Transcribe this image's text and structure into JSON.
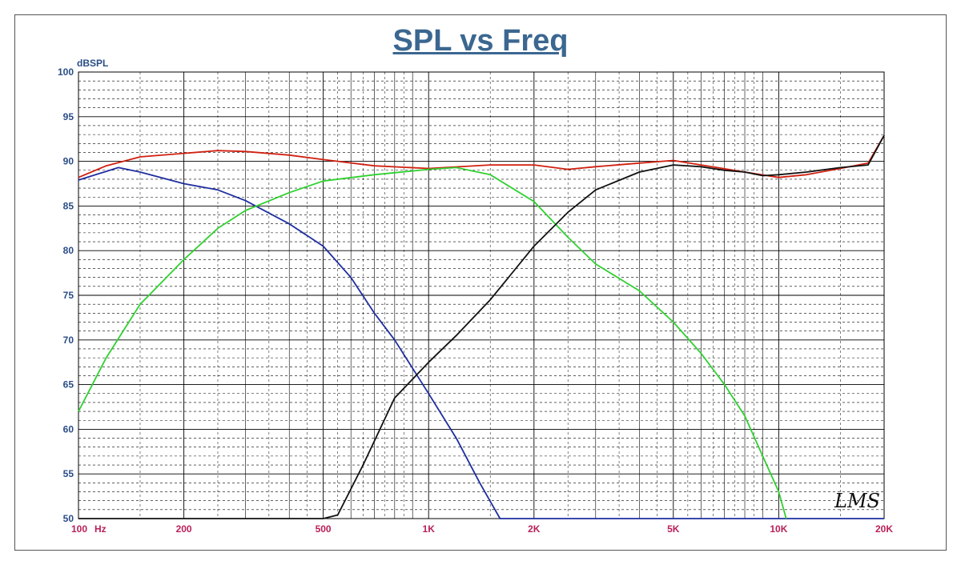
{
  "chart_data": {
    "type": "line",
    "title": "SPL vs Freq",
    "ylabel": "dBSPL",
    "xlabel": "",
    "xscale": "log",
    "xlim": [
      100,
      20000
    ],
    "ylim": [
      50,
      100
    ],
    "grid": true,
    "y_ticks": [
      {
        "value": 100,
        "label": "100"
      },
      {
        "value": 95,
        "label": "95"
      },
      {
        "value": 90,
        "label": "90"
      },
      {
        "value": 85,
        "label": "85"
      },
      {
        "value": 80,
        "label": "80"
      },
      {
        "value": 75,
        "label": "75"
      },
      {
        "value": 70,
        "label": "70"
      },
      {
        "value": 65,
        "label": "65"
      },
      {
        "value": 60,
        "label": "60"
      },
      {
        "value": 55,
        "label": "55"
      },
      {
        "value": 50,
        "label": "50"
      }
    ],
    "x_ticks": [
      {
        "value": 100,
        "label": "100",
        "unit": "Hz"
      },
      {
        "value": 200,
        "label": "200"
      },
      {
        "value": 500,
        "label": "500"
      },
      {
        "value": 1000,
        "label": "1K"
      },
      {
        "value": 2000,
        "label": "2K"
      },
      {
        "value": 5000,
        "label": "5K"
      },
      {
        "value": 10000,
        "label": "10K"
      },
      {
        "value": 20000,
        "label": "20K"
      }
    ],
    "series": [
      {
        "color": "#d02010",
        "x": [
          100,
          120,
          150,
          200,
          250,
          300,
          400,
          500,
          700,
          1000,
          1500,
          2000,
          2500,
          3000,
          4000,
          5000,
          6000,
          8000,
          10000,
          12000,
          15000,
          18000,
          20000
        ],
        "y": [
          88.2,
          89.5,
          90.5,
          90.9,
          91.2,
          91.1,
          90.7,
          90.2,
          89.5,
          89.2,
          89.6,
          89.6,
          89.1,
          89.4,
          89.8,
          90.1,
          89.6,
          88.8,
          88.2,
          88.5,
          89.2,
          89.8,
          92.9
        ]
      },
      {
        "color": "#1e2ea0",
        "x": [
          100,
          130,
          150,
          200,
          250,
          300,
          400,
          500,
          600,
          700,
          800,
          1000,
          1200,
          1400,
          1600,
          2000,
          5000,
          10000,
          20000
        ],
        "y": [
          87.9,
          89.3,
          88.8,
          87.5,
          86.8,
          85.6,
          83.0,
          80.5,
          77.0,
          73.0,
          70.0,
          64.0,
          59.0,
          54.0,
          50.0,
          50.0,
          50.0,
          50.0,
          50.0
        ]
      },
      {
        "color": "#30d030",
        "x": [
          100,
          120,
          150,
          200,
          250,
          300,
          400,
          500,
          700,
          1000,
          1200,
          1500,
          2000,
          2500,
          3000,
          4000,
          5000,
          6000,
          7000,
          8000,
          9000,
          10000,
          10500
        ],
        "y": [
          62.0,
          68.0,
          74.0,
          79.0,
          82.5,
          84.5,
          86.5,
          87.8,
          88.5,
          89.1,
          89.3,
          88.5,
          85.5,
          81.5,
          78.5,
          75.5,
          72.0,
          68.5,
          65.0,
          61.5,
          57.0,
          53.0,
          50.0
        ]
      },
      {
        "color": "#111111",
        "x": [
          100,
          500,
          550,
          650,
          800,
          1000,
          1200,
          1500,
          2000,
          2500,
          3000,
          4000,
          5000,
          6000,
          7000,
          8000,
          9000,
          10000,
          12000,
          15000,
          18000,
          20000
        ],
        "y": [
          50.0,
          50.0,
          50.4,
          56.0,
          63.5,
          67.5,
          70.5,
          74.5,
          80.5,
          84.3,
          86.8,
          88.8,
          89.6,
          89.4,
          89.0,
          88.8,
          88.4,
          88.5,
          88.8,
          89.3,
          89.6,
          92.9
        ]
      }
    ],
    "annotations": [
      "LMS"
    ]
  }
}
